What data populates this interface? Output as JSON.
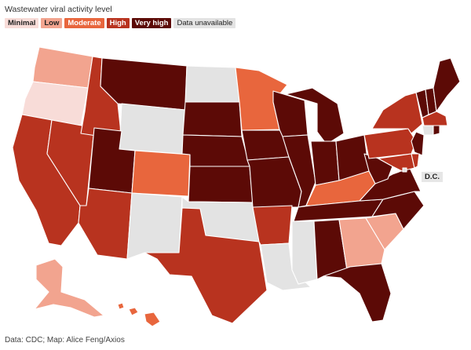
{
  "title": "Wastewater viral activity level",
  "legend": [
    {
      "label": "Minimal",
      "color": "#f8dcd8"
    },
    {
      "label": "Low",
      "color": "#f2a48f"
    },
    {
      "label": "Moderate",
      "color": "#e8663d"
    },
    {
      "label": "High",
      "color": "#b8331f"
    },
    {
      "label": "Very high",
      "color": "#5c0a06"
    },
    {
      "label": "Data unavailable",
      "color": "#e3e3e3"
    }
  ],
  "dc_label": "D.C.",
  "source": "Data: CDC; Map: Alice Feng/Axios",
  "states": {
    "WA": "Low",
    "OR": "Minimal",
    "CA": "High",
    "NV": "High",
    "ID": "High",
    "MT": "Very high",
    "WY": "Data unavailable",
    "UT": "Very high",
    "AZ": "High",
    "CO": "Moderate",
    "NM": "Data unavailable",
    "ND": "Data unavailable",
    "SD": "Very high",
    "NE": "Very high",
    "KS": "Very high",
    "OK": "Data unavailable",
    "TX": "High",
    "MN": "Moderate",
    "IA": "Very high",
    "MO": "Very high",
    "AR": "High",
    "LA": "Data unavailable",
    "WI": "Very high",
    "IL": "Very high",
    "MI": "Very high",
    "IN": "Very high",
    "OH": "Very high",
    "KY": "Moderate",
    "TN": "Very high",
    "MS": "Data unavailable",
    "AL": "Very high",
    "GA": "Low",
    "FL": "Very high",
    "SC": "Low",
    "NC": "Very high",
    "VA": "Very high",
    "WV": "Very high",
    "PA": "High",
    "NY": "High",
    "VT": "Very high",
    "NH": "Very high",
    "ME": "Very high",
    "MA": "High",
    "CT": "Data unavailable",
    "RI": "Very high",
    "NJ": "Very high",
    "DE": "High",
    "MD": "High",
    "DC": "Data unavailable",
    "AK": "Low",
    "HI": "Moderate"
  }
}
